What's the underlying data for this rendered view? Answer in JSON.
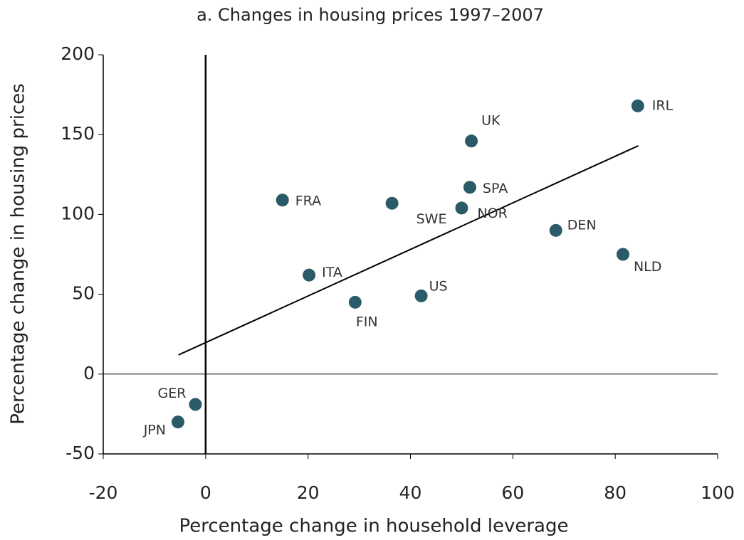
{
  "chart_data": {
    "type": "scatter",
    "title": "a. Changes in housing prices 1997–2007",
    "x_label": "Percentage change in household leverage",
    "y_label": "Percentage change in housing prices",
    "color": "#2b5a68",
    "points": [
      {
        "label": "IRL",
        "x": 84.4,
        "y": 168
      },
      {
        "label": "UK",
        "x": 51.9,
        "y": 146
      },
      {
        "label": "SPA",
        "x": 51.6,
        "y": 117
      },
      {
        "label": "NOR",
        "x": 50,
        "y": 104
      },
      {
        "label": "SWE",
        "x": 36.4,
        "y": 107
      },
      {
        "label": "FRA",
        "x": 15,
        "y": 109
      },
      {
        "label": "DEN",
        "x": 68.4,
        "y": 90
      },
      {
        "label": "NLD",
        "x": 81.5,
        "y": 75
      },
      {
        "label": "ITA",
        "x": 20.2,
        "y": 62
      },
      {
        "label": "US",
        "x": 42.1,
        "y": 49
      },
      {
        "label": "FIN",
        "x": 29.2,
        "y": 45
      },
      {
        "label": "GER",
        "x": -2,
        "y": -19
      },
      {
        "label": "JPN",
        "x": -5.4,
        "y": -30
      }
    ],
    "trendline": {
      "x": [
        -5.3,
        84.5
      ],
      "y": [
        12,
        143
      ]
    },
    "xlim": [
      -20,
      100
    ],
    "xticks": [
      -20,
      0,
      20,
      40,
      60,
      80,
      100
    ],
    "ylim": [
      -50,
      200
    ],
    "yticks": [
      -50,
      0,
      50,
      100,
      150,
      200
    ]
  }
}
